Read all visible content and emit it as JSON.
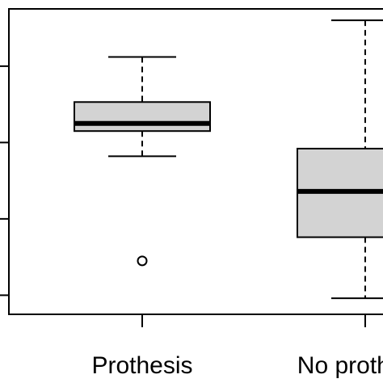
{
  "chart_data": {
    "type": "boxplot",
    "title": "",
    "xlabel": "",
    "ylabel": "",
    "categories": [
      "Prothesis",
      "No prothesis"
    ],
    "y_ticks": [
      1,
      2,
      3,
      4
    ],
    "ylim": [
      0.75,
      4.75
    ],
    "boxes": [
      {
        "name": "Prothesis",
        "whisker_low": 2.82,
        "q1": 3.15,
        "median": 3.25,
        "q3": 3.53,
        "whisker_high": 4.12,
        "outliers": [
          1.45
        ]
      },
      {
        "name": "No prothesis",
        "whisker_low": 0.96,
        "q1": 1.76,
        "median": 2.36,
        "q3": 2.92,
        "whisker_high": 4.6,
        "outliers": []
      }
    ],
    "colors": {
      "box_fill": "#d3d3d3",
      "stroke": "#000000"
    }
  }
}
